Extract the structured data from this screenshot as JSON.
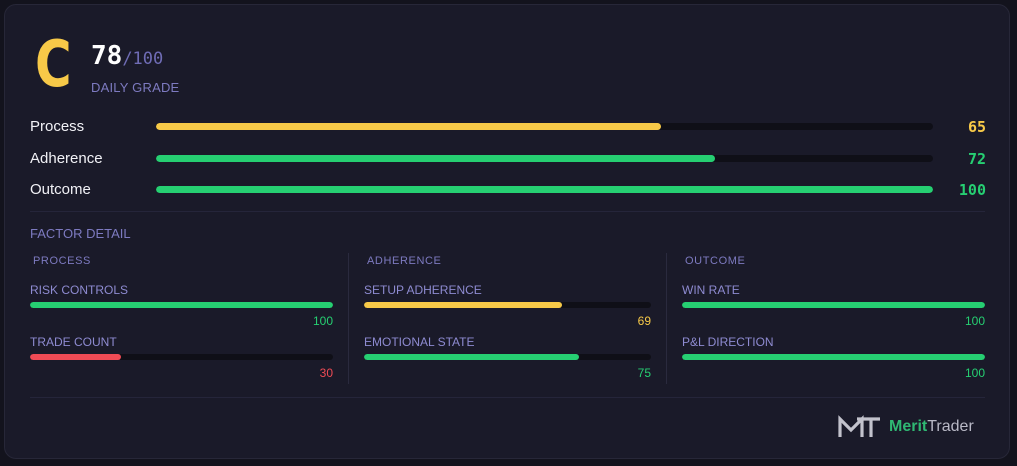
{
  "colors": {
    "yellow": "#f7c948",
    "green": "#26cf72",
    "red": "#ef4b55"
  },
  "grade": {
    "letter": "C",
    "score": "78",
    "max": "/100",
    "label": "DAILY GRADE"
  },
  "metrics": [
    {
      "label": "Process",
      "value": "65",
      "fraction": 0.65,
      "color": "#f7c948"
    },
    {
      "label": "Adherence",
      "value": "72",
      "fraction": 0.72,
      "color": "#26cf72"
    },
    {
      "label": "Outcome",
      "value": "100",
      "fraction": 1.0,
      "color": "#26cf72"
    }
  ],
  "factor_detail": {
    "title": "FACTOR DETAIL",
    "columns": [
      {
        "title": "PROCESS",
        "factors": [
          {
            "label": "RISK CONTROLS",
            "value": "100",
            "fraction": 1.0,
            "color": "#26cf72"
          },
          {
            "label": "TRADE COUNT",
            "value": "30",
            "fraction": 0.3,
            "color": "#ef4b55"
          }
        ]
      },
      {
        "title": "ADHERENCE",
        "factors": [
          {
            "label": "SETUP ADHERENCE",
            "value": "69",
            "fraction": 0.69,
            "color": "#f7c948"
          },
          {
            "label": "EMOTIONAL STATE",
            "value": "75",
            "fraction": 0.75,
            "color": "#26cf72"
          }
        ]
      },
      {
        "title": "OUTCOME",
        "factors": [
          {
            "label": "WIN RATE",
            "value": "100",
            "fraction": 1.0,
            "color": "#26cf72"
          },
          {
            "label": "P&L DIRECTION",
            "value": "100",
            "fraction": 1.0,
            "color": "#26cf72"
          }
        ]
      }
    ]
  },
  "brand": {
    "icon": "merittrader-logo-icon",
    "part1": "Merit",
    "part2": "Trader"
  }
}
